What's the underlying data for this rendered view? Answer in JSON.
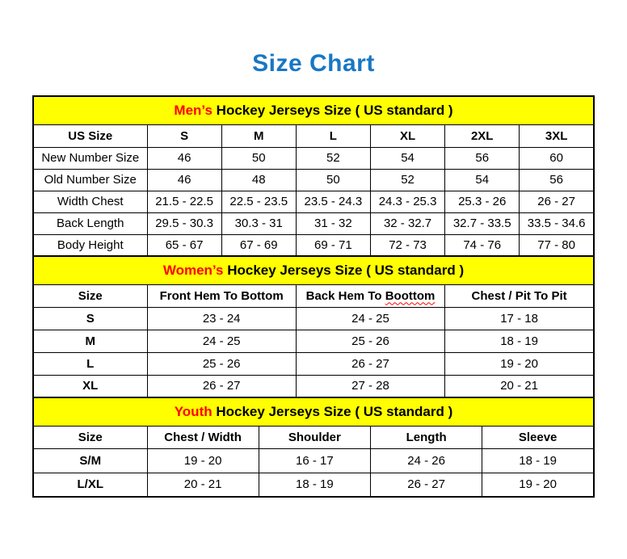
{
  "page_title": "Size Chart",
  "colors": {
    "title_blue": "#1877c4",
    "band_yellow": "#ffff00",
    "highlight_red": "#ff0000",
    "text_black": "#000000",
    "background": "#ffffff"
  },
  "men_table": {
    "band": {
      "highlight": "Men’s",
      "rest": " Hockey Jerseys Size ( US standard )"
    },
    "col_headers": [
      "US Size",
      "S",
      "M",
      "L",
      "XL",
      "2XL",
      "3XL"
    ],
    "rows": [
      {
        "label": "New Number Size",
        "values": [
          "46",
          "50",
          "52",
          "54",
          "56",
          "60"
        ]
      },
      {
        "label": "Old Number Size",
        "values": [
          "46",
          "48",
          "50",
          "52",
          "54",
          "56"
        ]
      },
      {
        "label": "Width Chest",
        "values": [
          "21.5 - 22.5",
          "22.5 - 23.5",
          "23.5 - 24.3",
          "24.3 - 25.3",
          "25.3 - 26",
          "26 - 27"
        ]
      },
      {
        "label": "Back Length",
        "values": [
          "29.5 - 30.3",
          "30.3 - 31",
          "31 - 32",
          "32 - 32.7",
          "32.7 - 33.5",
          "33.5 - 34.6"
        ]
      },
      {
        "label": "Body Height",
        "values": [
          "65 - 67",
          "67 - 69",
          "69 - 71",
          "72 - 73",
          "74 - 76",
          "77 - 80"
        ]
      }
    ]
  },
  "women_table": {
    "band": {
      "highlight": "Women’s",
      "rest": " Hockey Jerseys Size ( US standard )"
    },
    "col_headers": [
      "Size",
      "Front Hem To Bottom",
      "Back Hem To Boottom",
      "Chest / Pit To Pit"
    ],
    "back_hem_header": {
      "before": "Back Hem To ",
      "misspelled": "Boottom"
    },
    "rows": [
      {
        "label": "S",
        "values": [
          "23 - 24",
          "24 - 25",
          "17 - 18"
        ]
      },
      {
        "label": "M",
        "values": [
          "24 - 25",
          "25 - 26",
          "18 - 19"
        ]
      },
      {
        "label": "L",
        "values": [
          "25 - 26",
          "26 - 27",
          "19 - 20"
        ]
      },
      {
        "label": "XL",
        "values": [
          "26 - 27",
          "27 - 28",
          "20 - 21"
        ]
      }
    ]
  },
  "youth_table": {
    "band": {
      "highlight": "Youth",
      "rest": " Hockey Jerseys Size ( US standard )"
    },
    "col_headers": [
      "Size",
      "Chest / Width",
      "Shoulder",
      "Length",
      "Sleeve"
    ],
    "rows": [
      {
        "label": "S/M",
        "values": [
          "19 - 20",
          "16 - 17",
          "24 - 26",
          "18 - 19"
        ]
      },
      {
        "label": "L/XL",
        "values": [
          "20 - 21",
          "18 - 19",
          "26 - 27",
          "19 - 20"
        ]
      }
    ]
  }
}
